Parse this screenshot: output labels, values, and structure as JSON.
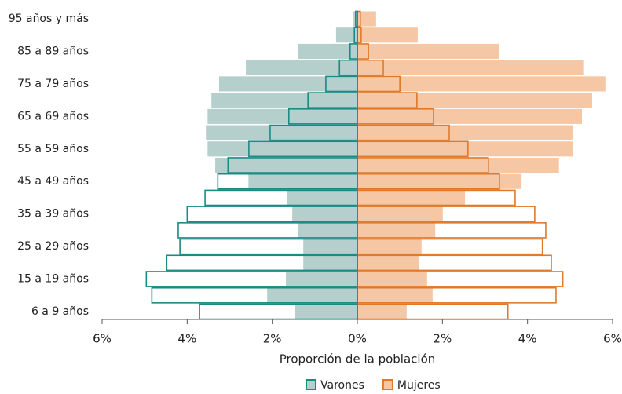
{
  "chart_data": {
    "type": "pyramid",
    "categories": [
      "6 a 9 años",
      null,
      "15 a 19 años",
      null,
      "25 a 29 años",
      null,
      "35 a 39 años",
      null,
      "45 a 49 años",
      null,
      "55 a 59 años",
      null,
      "65 a 69 años",
      null,
      "75 a 79 años",
      null,
      "85 a 89 años",
      null,
      "95 años y más"
    ],
    "series": [
      {
        "name": "Varones",
        "color": "#1b8a84",
        "values": [
          -3.71,
          -4.83,
          -4.96,
          -4.48,
          -4.17,
          -4.21,
          -4.0,
          -3.58,
          -3.28,
          -3.04,
          -2.55,
          -2.05,
          -1.61,
          -1.16,
          -0.74,
          -0.42,
          -0.17,
          -0.07,
          -0.04
        ]
      },
      {
        "name": "Mujeres",
        "color": "#e07a2a",
        "values": [
          3.54,
          4.67,
          4.83,
          4.56,
          4.35,
          4.43,
          4.17,
          3.71,
          3.34,
          3.08,
          2.6,
          2.16,
          1.79,
          1.4,
          1.0,
          0.61,
          0.26,
          0.09,
          0.07
        ]
      }
    ],
    "background_series": [
      {
        "color": "#b5cfcc",
        "values": [
          -1.46,
          -2.12,
          -1.68,
          -1.27,
          -1.27,
          -1.4,
          -1.53,
          -1.66,
          -2.56,
          -3.34,
          -3.52,
          -3.56,
          -3.52,
          -3.43,
          -3.25,
          -2.62,
          -1.4,
          -0.5,
          -0.09
        ]
      },
      {
        "color": "#f5c7a5",
        "values": [
          1.16,
          1.77,
          1.64,
          1.44,
          1.51,
          1.83,
          2.01,
          2.53,
          3.86,
          4.74,
          5.06,
          5.06,
          5.28,
          5.52,
          5.83,
          5.31,
          3.34,
          1.42,
          0.44
        ]
      }
    ],
    "xlim": [
      -6,
      6
    ],
    "xticks": [
      {
        "value": -6,
        "label": "6%"
      },
      {
        "value": -4,
        "label": "4%"
      },
      {
        "value": -2,
        "label": "2%"
      },
      {
        "value": 0,
        "label": "0%"
      },
      {
        "value": 2,
        "label": "2%"
      },
      {
        "value": 4,
        "label": "4%"
      },
      {
        "value": 6,
        "label": "6%"
      }
    ],
    "xlabel": "Proporción de la población"
  }
}
